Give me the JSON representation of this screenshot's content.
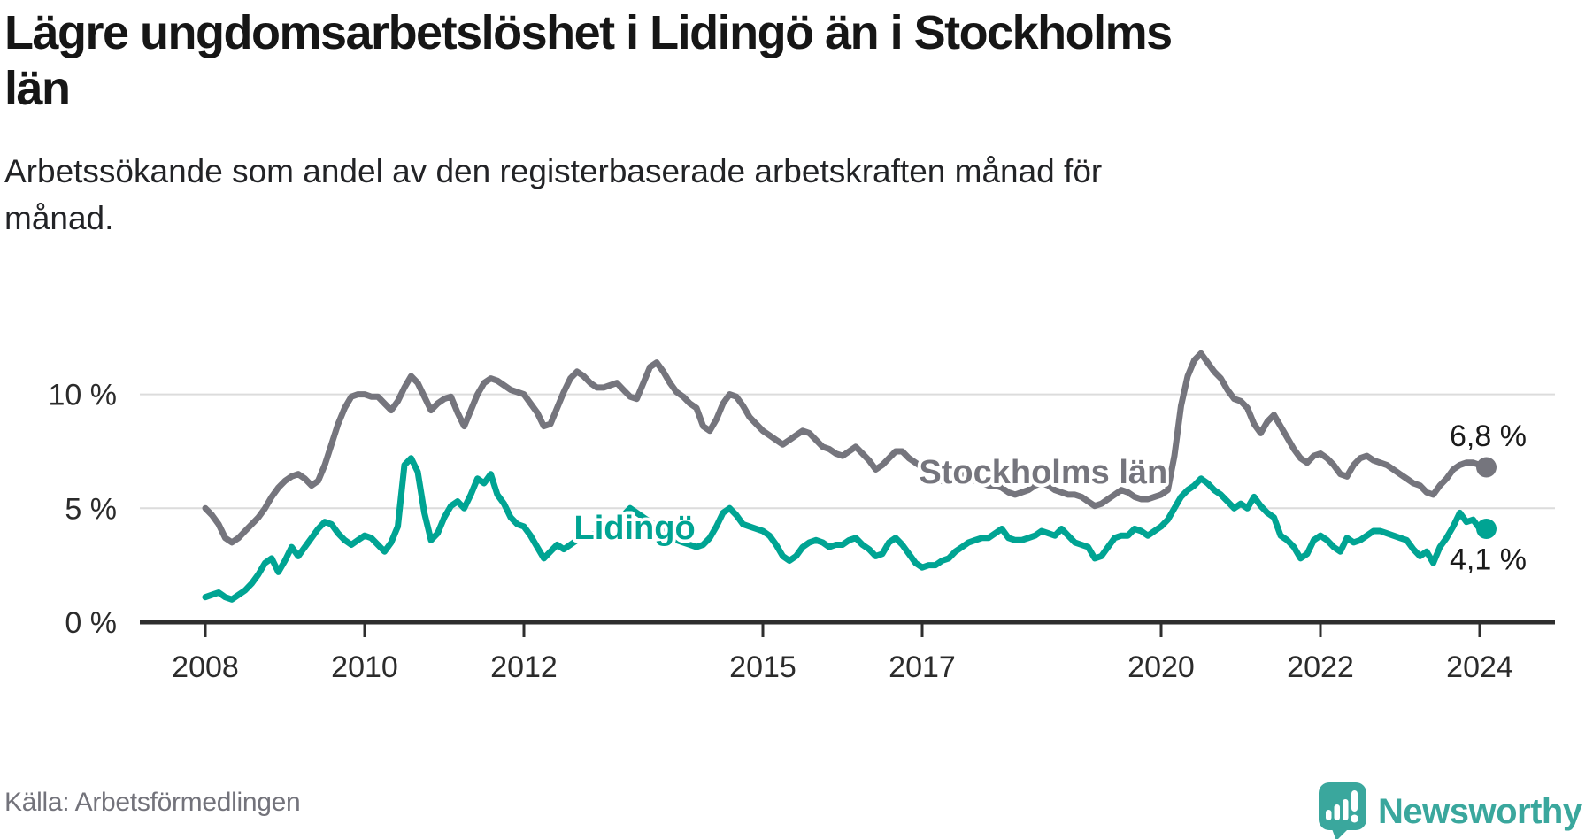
{
  "header": {
    "title": "Lägre ungdomsarbetslöshet i Lidingö än i Stockholms\nlän",
    "subtitle": "Arbetssökande som andel av den registerbaserade arbetskraften månad för\nmånad."
  },
  "footer": {
    "source": "Källa: Arbetsförmedlingen",
    "logo_text": "Newsworthy"
  },
  "colors": {
    "teal": "#00a493",
    "gray": "#75757d",
    "axis": "#2e2e2e",
    "grid": "#dcdcdc",
    "tick_text": "#2b2b2b",
    "end_label_text": "#1a1a1a",
    "logo_teal": "#3aa79d"
  },
  "chart_data": {
    "type": "line",
    "title": "Lägre ungdomsarbetslöshet i Lidingö än i Stockholms län",
    "xlabel": "",
    "ylabel": "",
    "unit": "%",
    "x_start": {
      "year": 2008,
      "month": 1
    },
    "x_step_months": 1,
    "ylim": [
      0,
      12.3
    ],
    "grid": {
      "show_y": true,
      "gridline_values": [
        5,
        10
      ]
    },
    "y_axis": {
      "ticks": [
        {
          "value": 0,
          "label": "0 %"
        },
        {
          "value": 5,
          "label": "5 %"
        },
        {
          "value": 10,
          "label": "10 %"
        }
      ]
    },
    "x_axis": {
      "ticks": [
        {
          "year": 2008,
          "label": "2008"
        },
        {
          "year": 2010,
          "label": "2010"
        },
        {
          "year": 2012,
          "label": "2012"
        },
        {
          "year": 2015,
          "label": "2015"
        },
        {
          "year": 2017,
          "label": "2017"
        },
        {
          "year": 2020,
          "label": "2020"
        },
        {
          "year": 2022,
          "label": "2022"
        },
        {
          "year": 2024,
          "label": "2024"
        }
      ]
    },
    "legend_position": "inline-labels",
    "series": [
      {
        "name": "Stockholms län",
        "color": "#75757d",
        "end_label": "6,8 %",
        "end_value": 6.8,
        "label_anchor": {
          "t": 2018.52,
          "v": 6.6
        },
        "values": [
          5.0,
          4.7,
          4.3,
          3.7,
          3.5,
          3.7,
          4.0,
          4.3,
          4.6,
          5.0,
          5.5,
          5.9,
          6.2,
          6.4,
          6.5,
          6.3,
          6.0,
          6.2,
          6.9,
          7.8,
          8.7,
          9.4,
          9.9,
          10.0,
          10.0,
          9.9,
          9.9,
          9.6,
          9.3,
          9.7,
          10.3,
          10.8,
          10.5,
          9.9,
          9.3,
          9.6,
          9.8,
          9.9,
          9.2,
          8.6,
          9.3,
          10.0,
          10.5,
          10.7,
          10.6,
          10.4,
          10.2,
          10.1,
          10.0,
          9.6,
          9.2,
          8.6,
          8.7,
          9.4,
          10.1,
          10.7,
          11.0,
          10.8,
          10.5,
          10.3,
          10.3,
          10.4,
          10.5,
          10.2,
          9.9,
          9.8,
          10.5,
          11.2,
          11.4,
          11.0,
          10.5,
          10.1,
          9.9,
          9.6,
          9.4,
          8.6,
          8.4,
          8.9,
          9.6,
          10.0,
          9.9,
          9.5,
          9.0,
          8.7,
          8.4,
          8.2,
          8.0,
          7.8,
          8.0,
          8.2,
          8.4,
          8.3,
          8.0,
          7.7,
          7.6,
          7.4,
          7.3,
          7.5,
          7.7,
          7.4,
          7.1,
          6.7,
          6.9,
          7.2,
          7.5,
          7.5,
          7.2,
          7.0,
          6.8,
          6.6,
          6.4,
          6.2,
          6.1,
          6.3,
          6.5,
          6.4,
          6.2,
          6.1,
          6.0,
          6.0,
          5.9,
          5.7,
          5.6,
          5.7,
          5.8,
          6.0,
          6.1,
          6.0,
          5.8,
          5.7,
          5.6,
          5.6,
          5.5,
          5.3,
          5.1,
          5.2,
          5.4,
          5.6,
          5.8,
          5.7,
          5.5,
          5.4,
          5.4,
          5.5,
          5.6,
          5.8,
          7.3,
          9.5,
          10.8,
          11.5,
          11.8,
          11.4,
          11.0,
          10.7,
          10.2,
          9.8,
          9.7,
          9.4,
          8.7,
          8.3,
          8.8,
          9.1,
          8.6,
          8.1,
          7.6,
          7.2,
          7.0,
          7.3,
          7.4,
          7.2,
          6.9,
          6.5,
          6.4,
          6.9,
          7.2,
          7.3,
          7.1,
          7.0,
          6.9,
          6.7,
          6.5,
          6.3,
          6.1,
          6.0,
          5.7,
          5.6,
          6.0,
          6.3,
          6.7,
          6.9,
          7.0,
          7.0,
          6.9,
          6.8
        ]
      },
      {
        "name": "Lidingö",
        "color": "#00a493",
        "end_label": "4,1 %",
        "end_value": 4.1,
        "label_anchor": {
          "t": 2013.39,
          "v": 4.15
        },
        "values": [
          1.1,
          1.2,
          1.3,
          1.1,
          1.0,
          1.2,
          1.4,
          1.7,
          2.1,
          2.6,
          2.8,
          2.2,
          2.7,
          3.3,
          2.9,
          3.3,
          3.7,
          4.1,
          4.4,
          4.3,
          3.9,
          3.6,
          3.4,
          3.6,
          3.8,
          3.7,
          3.4,
          3.1,
          3.5,
          4.2,
          6.9,
          7.2,
          6.6,
          4.8,
          3.6,
          3.9,
          4.6,
          5.1,
          5.3,
          5.0,
          5.6,
          6.3,
          6.1,
          6.5,
          5.6,
          5.2,
          4.6,
          4.3,
          4.2,
          3.8,
          3.3,
          2.8,
          3.1,
          3.4,
          3.2,
          3.4,
          3.6,
          3.7,
          3.8,
          3.9,
          4.0,
          4.2,
          4.4,
          4.7,
          5.0,
          4.8,
          4.6,
          4.4,
          4.2,
          4.0,
          3.8,
          3.6,
          3.5,
          3.4,
          3.3,
          3.4,
          3.7,
          4.2,
          4.8,
          5.0,
          4.7,
          4.3,
          4.2,
          4.1,
          4.0,
          3.8,
          3.4,
          2.9,
          2.7,
          2.9,
          3.3,
          3.5,
          3.6,
          3.5,
          3.3,
          3.4,
          3.4,
          3.6,
          3.7,
          3.4,
          3.2,
          2.9,
          3.0,
          3.5,
          3.7,
          3.4,
          3.0,
          2.6,
          2.4,
          2.5,
          2.5,
          2.7,
          2.8,
          3.1,
          3.3,
          3.5,
          3.6,
          3.7,
          3.7,
          3.9,
          4.1,
          3.7,
          3.6,
          3.6,
          3.7,
          3.8,
          4.0,
          3.9,
          3.8,
          4.1,
          3.8,
          3.5,
          3.4,
          3.3,
          2.8,
          2.9,
          3.3,
          3.7,
          3.8,
          3.8,
          4.1,
          4.0,
          3.8,
          4.0,
          4.2,
          4.5,
          5.0,
          5.5,
          5.8,
          6.0,
          6.3,
          6.1,
          5.8,
          5.6,
          5.3,
          5.0,
          5.2,
          5.0,
          5.5,
          5.1,
          4.8,
          4.6,
          3.8,
          3.6,
          3.3,
          2.8,
          3.0,
          3.6,
          3.8,
          3.6,
          3.3,
          3.1,
          3.7,
          3.5,
          3.6,
          3.8,
          4.0,
          4.0,
          3.9,
          3.8,
          3.7,
          3.6,
          3.2,
          2.9,
          3.1,
          2.6,
          3.3,
          3.7,
          4.2,
          4.8,
          4.4,
          4.5,
          4.1,
          4.1
        ]
      }
    ]
  }
}
